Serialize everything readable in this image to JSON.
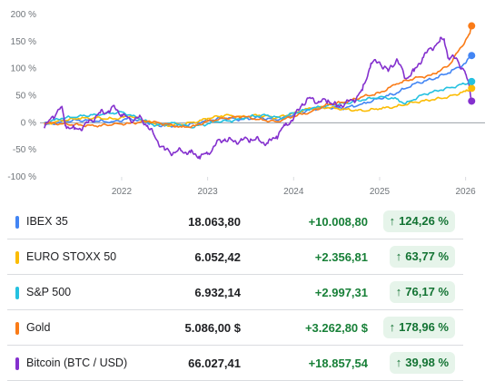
{
  "chart_data": {
    "type": "line",
    "y_ticks": [
      "200 %",
      "150 %",
      "100 %",
      "50 %",
      "0 %",
      "-50 %",
      "-100 %"
    ],
    "y_tick_values": [
      200,
      150,
      100,
      50,
      0,
      -50,
      -100
    ],
    "x_ticks": [
      "2022",
      "2023",
      "2024",
      "2025",
      "2026"
    ],
    "x_tick_values": [
      2022,
      2023,
      2024,
      2025,
      2026
    ],
    "xlim": [
      2021.05,
      2026.12
    ],
    "ylim": [
      -100,
      200
    ],
    "zero_line": true,
    "series": [
      {
        "name": "IBEX 35",
        "color": "#4285f4",
        "points": [
          [
            2021.1,
            -5
          ],
          [
            2021.3,
            2
          ],
          [
            2021.5,
            5
          ],
          [
            2021.7,
            3
          ],
          [
            2021.9,
            2
          ],
          [
            2022.1,
            8
          ],
          [
            2022.3,
            0
          ],
          [
            2022.5,
            -6
          ],
          [
            2022.7,
            -5
          ],
          [
            2022.9,
            0
          ],
          [
            2023.0,
            4
          ],
          [
            2023.2,
            9
          ],
          [
            2023.4,
            6
          ],
          [
            2023.6,
            10
          ],
          [
            2023.8,
            5
          ],
          [
            2024.0,
            15
          ],
          [
            2024.2,
            25
          ],
          [
            2024.4,
            28
          ],
          [
            2024.6,
            27
          ],
          [
            2024.8,
            35
          ],
          [
            2025.0,
            45
          ],
          [
            2025.2,
            55
          ],
          [
            2025.4,
            72
          ],
          [
            2025.6,
            80
          ],
          [
            2025.8,
            92
          ],
          [
            2026.0,
            110
          ],
          [
            2026.07,
            124.26
          ]
        ]
      },
      {
        "name": "EURO STOXX 50",
        "color": "#fbbc04",
        "points": [
          [
            2021.1,
            -3
          ],
          [
            2021.3,
            4
          ],
          [
            2021.5,
            8
          ],
          [
            2021.7,
            9
          ],
          [
            2021.9,
            7
          ],
          [
            2022.1,
            12
          ],
          [
            2022.3,
            2
          ],
          [
            2022.5,
            -5
          ],
          [
            2022.7,
            -3
          ],
          [
            2022.9,
            3
          ],
          [
            2023.0,
            8
          ],
          [
            2023.2,
            14
          ],
          [
            2023.4,
            11
          ],
          [
            2023.6,
            14
          ],
          [
            2023.8,
            9
          ],
          [
            2024.0,
            18
          ],
          [
            2024.2,
            27
          ],
          [
            2024.4,
            28
          ],
          [
            2024.6,
            25
          ],
          [
            2024.8,
            22
          ],
          [
            2025.0,
            26
          ],
          [
            2025.2,
            30
          ],
          [
            2025.4,
            38
          ],
          [
            2025.6,
            42
          ],
          [
            2025.8,
            48
          ],
          [
            2026.0,
            58
          ],
          [
            2026.07,
            63.77
          ]
        ]
      },
      {
        "name": "S&P 500",
        "color": "#24c1e0",
        "points": [
          [
            2021.1,
            0
          ],
          [
            2021.3,
            8
          ],
          [
            2021.5,
            12
          ],
          [
            2021.7,
            15
          ],
          [
            2021.9,
            18
          ],
          [
            2022.0,
            20
          ],
          [
            2022.2,
            8
          ],
          [
            2022.4,
            -5
          ],
          [
            2022.6,
            0
          ],
          [
            2022.8,
            -8
          ],
          [
            2022.95,
            -4
          ],
          [
            2023.1,
            2
          ],
          [
            2023.3,
            4
          ],
          [
            2023.5,
            12
          ],
          [
            2023.7,
            14
          ],
          [
            2023.85,
            8
          ],
          [
            2024.0,
            18
          ],
          [
            2024.2,
            26
          ],
          [
            2024.4,
            32
          ],
          [
            2024.6,
            36
          ],
          [
            2024.8,
            42
          ],
          [
            2025.0,
            48
          ],
          [
            2025.2,
            44
          ],
          [
            2025.3,
            35
          ],
          [
            2025.5,
            52
          ],
          [
            2025.7,
            60
          ],
          [
            2025.9,
            68
          ],
          [
            2026.07,
            76.17
          ]
        ]
      },
      {
        "name": "Gold",
        "color": "#fa7b17",
        "points": [
          [
            2021.1,
            0
          ],
          [
            2021.3,
            -2
          ],
          [
            2021.5,
            -4
          ],
          [
            2021.7,
            -6
          ],
          [
            2021.9,
            -3
          ],
          [
            2022.1,
            -1
          ],
          [
            2022.3,
            3
          ],
          [
            2022.5,
            -2
          ],
          [
            2022.7,
            -8
          ],
          [
            2022.85,
            -6
          ],
          [
            2023.0,
            3
          ],
          [
            2023.2,
            8
          ],
          [
            2023.4,
            12
          ],
          [
            2023.6,
            6
          ],
          [
            2023.8,
            2
          ],
          [
            2024.0,
            12
          ],
          [
            2024.2,
            20
          ],
          [
            2024.4,
            34
          ],
          [
            2024.6,
            38
          ],
          [
            2024.8,
            48
          ],
          [
            2025.0,
            55
          ],
          [
            2025.2,
            72
          ],
          [
            2025.4,
            82
          ],
          [
            2025.6,
            88
          ],
          [
            2025.8,
            105
          ],
          [
            2025.95,
            140
          ],
          [
            2026.05,
            165
          ],
          [
            2026.07,
            178.96
          ]
        ]
      },
      {
        "name": "Bitcoin (BTC / USD)",
        "color": "#8430ce",
        "points": [
          [
            2021.1,
            -10
          ],
          [
            2021.2,
            12
          ],
          [
            2021.3,
            28
          ],
          [
            2021.35,
            -5
          ],
          [
            2021.45,
            -12
          ],
          [
            2021.55,
            -8
          ],
          [
            2021.65,
            5
          ],
          [
            2021.75,
            18
          ],
          [
            2021.85,
            22
          ],
          [
            2021.92,
            28
          ],
          [
            2022.0,
            15
          ],
          [
            2022.1,
            5
          ],
          [
            2022.2,
            10
          ],
          [
            2022.3,
            -5
          ],
          [
            2022.4,
            -30
          ],
          [
            2022.5,
            -50
          ],
          [
            2022.6,
            -55
          ],
          [
            2022.7,
            -52
          ],
          [
            2022.8,
            -55
          ],
          [
            2022.9,
            -62
          ],
          [
            2023.0,
            -58
          ],
          [
            2023.1,
            -38
          ],
          [
            2023.2,
            -30
          ],
          [
            2023.3,
            -35
          ],
          [
            2023.4,
            -32
          ],
          [
            2023.5,
            -30
          ],
          [
            2023.6,
            -33
          ],
          [
            2023.7,
            -38
          ],
          [
            2023.8,
            -25
          ],
          [
            2023.9,
            -5
          ],
          [
            2024.0,
            8
          ],
          [
            2024.1,
            35
          ],
          [
            2024.2,
            45
          ],
          [
            2024.3,
            38
          ],
          [
            2024.4,
            42
          ],
          [
            2024.5,
            30
          ],
          [
            2024.6,
            36
          ],
          [
            2024.7,
            42
          ],
          [
            2024.8,
            60
          ],
          [
            2024.9,
            110
          ],
          [
            2025.0,
            112
          ],
          [
            2025.1,
            95
          ],
          [
            2025.2,
            118
          ],
          [
            2025.3,
            82
          ],
          [
            2025.4,
            95
          ],
          [
            2025.5,
            120
          ],
          [
            2025.6,
            138
          ],
          [
            2025.7,
            150
          ],
          [
            2025.75,
            155
          ],
          [
            2025.8,
            120
          ],
          [
            2025.9,
            118
          ],
          [
            2026.0,
            90
          ],
          [
            2026.05,
            60
          ],
          [
            2026.07,
            39.98
          ]
        ]
      }
    ]
  },
  "rows": [
    {
      "name": "IBEX 35",
      "price": "18.063,80",
      "change": "+10.008,80",
      "arrow": "↑",
      "percent": "124,26 %",
      "color": "#4285f4"
    },
    {
      "name": "EURO STOXX 50",
      "price": "6.052,42",
      "change": "+2.356,81",
      "arrow": "↑",
      "percent": "63,77 %",
      "color": "#fbbc04"
    },
    {
      "name": "S&P 500",
      "price": "6.932,14",
      "change": "+2.997,31",
      "arrow": "↑",
      "percent": "76,17 %",
      "color": "#24c1e0"
    },
    {
      "name": "Gold",
      "price": "5.086,00 $",
      "change": "+3.262,80 $",
      "arrow": "↑",
      "percent": "178,96 %",
      "color": "#fa7b17"
    },
    {
      "name": "Bitcoin (BTC / USD)",
      "price": "66.027,41",
      "change": "+18.857,54",
      "arrow": "↑",
      "percent": "39,98 %",
      "color": "#8430ce"
    }
  ]
}
